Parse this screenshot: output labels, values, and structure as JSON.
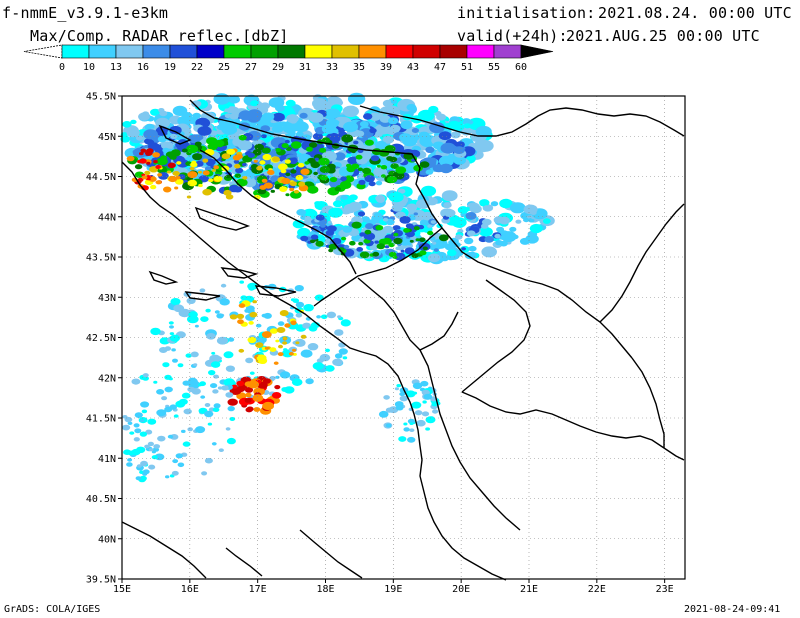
{
  "header": {
    "model_title": "f-nmmE_v3.9.1-e3km",
    "field_title": "Max/Comp. RADAR reflec.[dbZ]",
    "init_label": "initialisation:",
    "init_value": "2021.08.24. 00:00 UTC",
    "valid_label": "valid(+24h):",
    "valid_value": "2021.AUG.25 00:00 UTC"
  },
  "colorbar": {
    "labels": [
      "0",
      "10",
      "13",
      "16",
      "19",
      "22",
      "25",
      "27",
      "29",
      "31",
      "33",
      "35",
      "39",
      "43",
      "47",
      "51",
      "55",
      "60"
    ],
    "colors": [
      "#00ffff",
      "#40d0ff",
      "#80c8f0",
      "#3c8ce8",
      "#2050d8",
      "#0000c8",
      "#00cc00",
      "#00a000",
      "#007800",
      "#ffff00",
      "#e0c000",
      "#ff9000",
      "#ff0000",
      "#d00000",
      "#a80000",
      "#ff00ff",
      "#a040d0",
      "#000000"
    ]
  },
  "axes": {
    "lat_labels": [
      "45.5N",
      "45N",
      "44.5N",
      "44N",
      "43.5N",
      "43N",
      "42.5N",
      "42N",
      "41.5N",
      "41N",
      "40.5N",
      "40N",
      "39.5N"
    ],
    "lon_labels": [
      "15E",
      "16E",
      "17E",
      "18E",
      "19E",
      "20E",
      "21E",
      "22E",
      "23E"
    ]
  },
  "footer": {
    "left": "GrADS: COLA/IGES",
    "right": "2021-08-24-09:41"
  }
}
